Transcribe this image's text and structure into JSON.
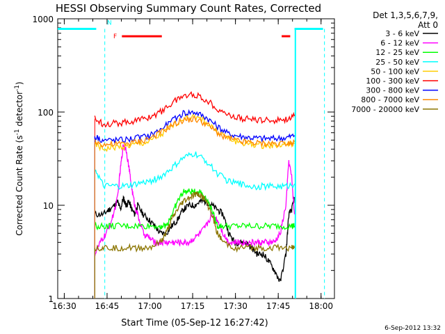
{
  "chart_data": {
    "type": "line",
    "title": "HESSI Observing Summary Count Rates, Corrected",
    "xlabel": "Start Time (05-Sep-12 16:27:42)",
    "ylabel": "Corrected Count Rate (s",
    "ylabel_sup1": "-1",
    "ylabel_mid": " detector",
    "ylabel_sup2": "-1",
    "ylabel_end": ")",
    "x_unit": "minutes after 16:27:42 UT",
    "xlim": [
      0,
      97
    ],
    "ylim": [
      1,
      1000
    ],
    "yscale": "log",
    "x_ticks": [
      "16:30",
      "16:45",
      "17:00",
      "17:15",
      "17:30",
      "17:45",
      "18:00"
    ],
    "y_ticks": [
      "1",
      "10",
      "100",
      "1000"
    ],
    "legend_title_1": "Det 1,3,5,6,7,9,",
    "legend_title_2": "Att 0",
    "legend_position": "right",
    "footer_date": "6-Sep-2012 13:32",
    "flags": {
      "n_label": "N",
      "f_label": "F"
    },
    "series": [
      {
        "name": "3 - 6 keV",
        "color": "#000000",
        "x": [
          13,
          16,
          18,
          20,
          21,
          22,
          23,
          24,
          25,
          26,
          27,
          28,
          30,
          32,
          34,
          36,
          38,
          40,
          42,
          44,
          46,
          48,
          50,
          52,
          54,
          56,
          58,
          60,
          62,
          64,
          66,
          68,
          70,
          72,
          74,
          76,
          78,
          80,
          81,
          82,
          83
        ],
        "y": [
          8,
          8,
          9,
          10,
          11,
          9,
          12,
          10,
          11,
          9,
          8,
          10,
          8,
          7,
          6,
          5,
          5,
          6,
          7,
          9,
          10,
          10,
          11,
          11,
          10,
          9,
          8,
          5,
          4,
          4,
          4,
          3.5,
          3,
          3,
          2.5,
          2,
          1.5,
          3,
          8,
          9,
          12
        ]
      },
      {
        "name": "6 - 12 keV",
        "color": "#ff00ff",
        "x": [
          13,
          15,
          17,
          19,
          21,
          22,
          23,
          24,
          25,
          26,
          27,
          28,
          30,
          32,
          34,
          36,
          38,
          40,
          42,
          44,
          46,
          48,
          50,
          52,
          54,
          56,
          58,
          60,
          62,
          64,
          66,
          68,
          70,
          72,
          74,
          76,
          78,
          80,
          81,
          82,
          83
        ],
        "y": [
          3,
          4,
          5,
          7,
          12,
          25,
          45,
          40,
          25,
          15,
          10,
          8,
          5,
          4.5,
          4,
          4,
          4,
          4,
          4,
          4,
          4,
          4.5,
          5,
          6,
          8,
          7,
          5,
          4,
          4,
          4,
          4,
          4,
          4,
          4,
          4,
          4,
          5,
          10,
          30,
          20,
          8
        ]
      },
      {
        "name": "12 - 25 keV",
        "color": "#00ff00",
        "x": [
          13,
          16,
          20,
          24,
          28,
          32,
          36,
          38,
          40,
          42,
          44,
          46,
          48,
          50,
          52,
          54,
          56,
          58,
          62,
          66,
          70,
          74,
          78,
          82,
          83
        ],
        "y": [
          6,
          6,
          6,
          6,
          6,
          6,
          6,
          6,
          8,
          11,
          14,
          14,
          14,
          14,
          12,
          9,
          6,
          6,
          6,
          6,
          6,
          6,
          6,
          6,
          6
        ]
      },
      {
        "name": "25 - 50 keV",
        "color": "#00ffff",
        "x": [
          13,
          16,
          20,
          24,
          28,
          32,
          36,
          40,
          44,
          48,
          52,
          56,
          60,
          64,
          68,
          72,
          76,
          80,
          83
        ],
        "y": [
          25,
          16,
          16,
          16,
          17,
          18,
          20,
          25,
          32,
          36,
          30,
          22,
          18,
          17,
          16,
          16,
          16,
          16,
          17
        ]
      },
      {
        "name": "50 - 100 keV",
        "color": "#ffcc00",
        "x": [
          13,
          16,
          20,
          24,
          28,
          32,
          36,
          40,
          44,
          48,
          52,
          56,
          60,
          64,
          68,
          72,
          76,
          80,
          83
        ],
        "y": [
          45,
          40,
          42,
          43,
          45,
          48,
          56,
          70,
          86,
          90,
          78,
          62,
          52,
          47,
          45,
          44,
          44,
          45,
          46
        ]
      },
      {
        "name": "100 - 300 keV",
        "color": "#ff0000",
        "x": [
          13,
          16,
          20,
          24,
          28,
          32,
          36,
          40,
          44,
          48,
          52,
          56,
          60,
          64,
          68,
          72,
          76,
          80,
          83
        ],
        "y": [
          85,
          75,
          76,
          78,
          82,
          88,
          100,
          125,
          150,
          155,
          135,
          110,
          92,
          86,
          83,
          82,
          82,
          84,
          90
        ]
      },
      {
        "name": "300 - 800 keV",
        "color": "#0000ff",
        "x": [
          13,
          16,
          20,
          24,
          28,
          32,
          36,
          40,
          44,
          48,
          52,
          56,
          60,
          64,
          68,
          72,
          76,
          80,
          83
        ],
        "y": [
          55,
          50,
          50,
          51,
          53,
          56,
          65,
          80,
          98,
          100,
          88,
          70,
          58,
          55,
          53,
          52,
          52,
          53,
          56
        ]
      },
      {
        "name": "800 - 7000 keV",
        "color": "#ff8800",
        "x": [
          13,
          16,
          20,
          24,
          28,
          32,
          36,
          40,
          44,
          48,
          52,
          56,
          60,
          64,
          68,
          72,
          76,
          80,
          83
        ],
        "y": [
          48,
          45,
          45,
          46,
          48,
          52,
          60,
          72,
          82,
          84,
          75,
          60,
          52,
          48,
          47,
          46,
          46,
          47,
          48
        ]
      },
      {
        "name": "7000 - 20000 keV",
        "color": "#8b7500",
        "x": [
          13,
          16,
          20,
          24,
          28,
          32,
          36,
          38,
          40,
          42,
          44,
          46,
          48,
          50,
          52,
          54,
          56,
          58,
          62,
          66,
          70,
          74,
          78,
          82,
          83
        ],
        "y": [
          3.5,
          3.5,
          3.5,
          3.5,
          3.5,
          3.5,
          4,
          5,
          7,
          9,
          11,
          12,
          13,
          13,
          11,
          8,
          5,
          4,
          3.5,
          3.5,
          3.5,
          3.5,
          3.5,
          3.5,
          3.5
        ]
      }
    ]
  }
}
